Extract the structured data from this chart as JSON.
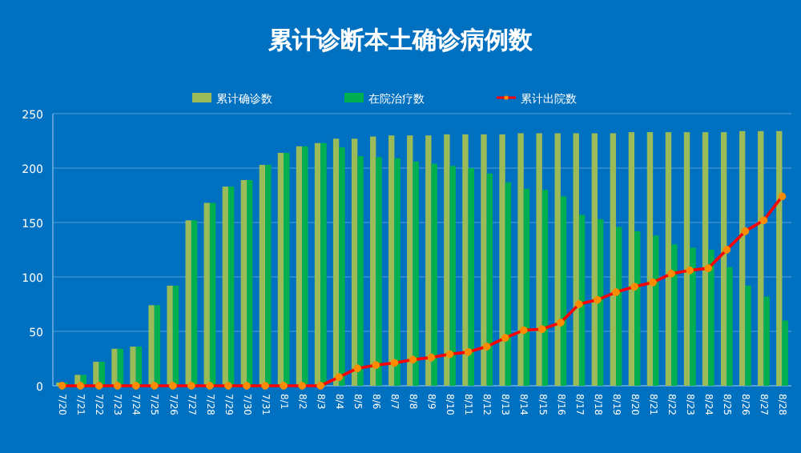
{
  "chart_data": {
    "type": "bar",
    "title": "累计诊断本土确诊病例数",
    "categories": [
      "7/20",
      "7/21",
      "7/22",
      "7/23",
      "7/24",
      "7/25",
      "7/26",
      "7/27",
      "7/28",
      "7/29",
      "7/30",
      "7/31",
      "8/1",
      "8/2",
      "8/3",
      "8/4",
      "8/5",
      "8/6",
      "8/7",
      "8/8",
      "8/9",
      "8/10",
      "8/11",
      "8/12",
      "8/13",
      "8/14",
      "8/15",
      "8/16",
      "8/17",
      "8/18",
      "8/19",
      "8/20",
      "8/21",
      "8/22",
      "8/23",
      "8/24",
      "8/25",
      "8/26",
      "8/27",
      "8/28"
    ],
    "series": [
      {
        "name": "累计确诊数",
        "color": "#9bbb59",
        "values": [
          3,
          10,
          22,
          34,
          36,
          74,
          92,
          152,
          168,
          183,
          189,
          203,
          214,
          220,
          223,
          227,
          227,
          229,
          230,
          230,
          230,
          231,
          231,
          231,
          231,
          232,
          232,
          232,
          232,
          232,
          232,
          233,
          233,
          233,
          233,
          233,
          233,
          234,
          234,
          234
        ]
      },
      {
        "name": "在院治疗数",
        "color": "#00b050",
        "values": [
          3,
          10,
          22,
          34,
          36,
          74,
          92,
          152,
          168,
          183,
          189,
          203,
          214,
          220,
          223,
          219,
          211,
          210,
          209,
          206,
          204,
          202,
          200,
          195,
          187,
          181,
          180,
          174,
          157,
          153,
          146,
          142,
          138,
          130,
          127,
          125,
          109,
          92,
          82,
          60
        ]
      },
      {
        "name": "累计出院数",
        "type": "line",
        "color": "#ff0000",
        "marker": "circle",
        "values": [
          0,
          0,
          0,
          0,
          0,
          0,
          0,
          0,
          0,
          0,
          0,
          0,
          0,
          0,
          0,
          8,
          16,
          19,
          21,
          24,
          26,
          29,
          31,
          36,
          44,
          51,
          52,
          58,
          75,
          79,
          86,
          91,
          95,
          103,
          106,
          108,
          125,
          142,
          152,
          174
        ]
      }
    ],
    "ylim": [
      0,
      250
    ],
    "yticks": [
      0,
      50,
      100,
      150,
      200,
      250
    ],
    "grid": "y",
    "legend": "top"
  }
}
